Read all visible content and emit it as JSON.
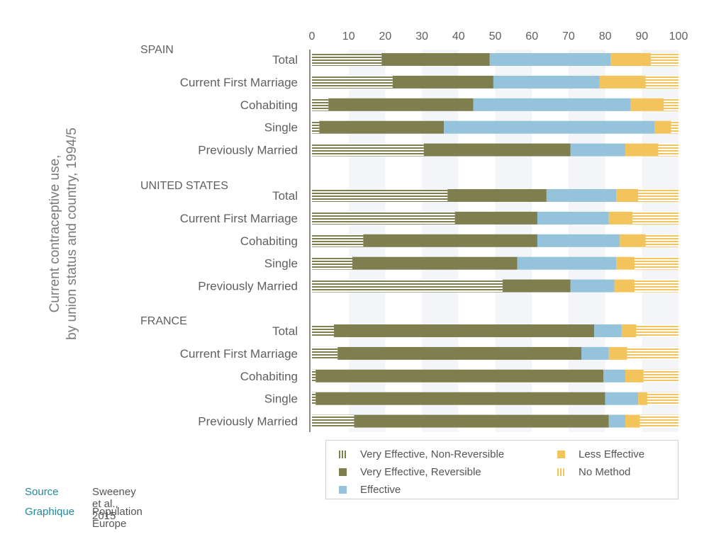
{
  "chart_data": {
    "type": "bar",
    "orientation": "horizontal",
    "stacked": true,
    "title": "Current contraceptive use, by union status and country, 1994/5",
    "xticks": [
      "0",
      "10",
      "20",
      "30",
      "40",
      "50",
      "60",
      "70",
      "80",
      "90",
      "100"
    ],
    "xlim": [
      0,
      100
    ],
    "series_names": [
      "Very Effective, Non-Reversible",
      "Very Effective, Reversible",
      "Effective",
      "Less Effective",
      "No Method"
    ],
    "colors": {
      "very_effective_non_reversible": "#7f7e4f",
      "very_effective_reversible": "#7f7e4f",
      "effective": "#95c3db",
      "less_effective": "#f4c45c",
      "no_method": "#f4c45c"
    },
    "groups": [
      {
        "name": "SPAIN",
        "rows": [
          {
            "label": "Total",
            "values": [
              19,
              29.5,
              33,
              11,
              7.5
            ]
          },
          {
            "label": "Current First Marriage",
            "values": [
              22,
              27.5,
              29,
              12.5,
              9
            ]
          },
          {
            "label": "Cohabiting",
            "values": [
              4.5,
              39.5,
              43,
              9,
              4
            ]
          },
          {
            "label": "Single",
            "values": [
              2,
              34,
              57.5,
              4.5,
              2
            ]
          },
          {
            "label": "Previously Married",
            "values": [
              30.5,
              40,
              15,
              9,
              5.5
            ]
          }
        ]
      },
      {
        "name": "UNITED STATES",
        "rows": [
          {
            "label": "Total",
            "values": [
              37,
              27,
              19,
              6,
              11
            ]
          },
          {
            "label": "Current First Marriage",
            "values": [
              39,
              22.5,
              19.5,
              6.5,
              12.5
            ]
          },
          {
            "label": "Cohabiting",
            "values": [
              14,
              47.5,
              22.5,
              7,
              9
            ]
          },
          {
            "label": "Single",
            "values": [
              11,
              45,
              27,
              5,
              12
            ]
          },
          {
            "label": "Previously Married",
            "values": [
              52,
              18.5,
              12,
              5.5,
              12
            ]
          }
        ]
      },
      {
        "name": "FRANCE",
        "rows": [
          {
            "label": "Total",
            "values": [
              6,
              71,
              7.5,
              4,
              11.5
            ]
          },
          {
            "label": "Current First Marriage",
            "values": [
              7,
              66.5,
              7.5,
              5,
              14
            ]
          },
          {
            "label": "Cohabiting",
            "values": [
              1,
              78.5,
              6,
              5,
              9.5
            ]
          },
          {
            "label": "Single",
            "values": [
              1,
              79,
              9,
              2.5,
              8.5
            ]
          },
          {
            "label": "Previously Married",
            "values": [
              11.5,
              69.5,
              4.5,
              4,
              10.5
            ]
          }
        ]
      }
    ]
  },
  "legend": {
    "items": [
      {
        "label": "Very Effective, Non-Reversible",
        "icon": "stripe-green"
      },
      {
        "label": "Very Effective, Reversible",
        "icon": "solid-green"
      },
      {
        "label": "Effective",
        "icon": "solid-blue"
      },
      {
        "label": "Less Effective",
        "icon": "solid-yellow"
      },
      {
        "label": "No Method",
        "icon": "stripe-yellow"
      }
    ]
  },
  "footer": {
    "source_label": "Source",
    "source_value": "Sweeney et al., 2015",
    "graphique_label": "Graphique",
    "graphique_value": "Population Europe"
  }
}
